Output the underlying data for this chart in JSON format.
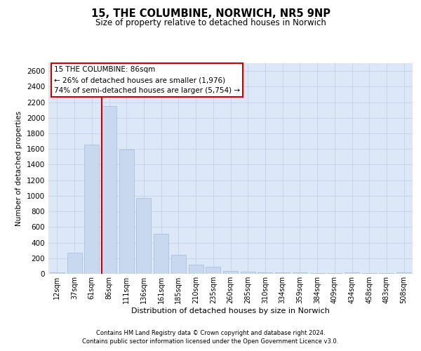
{
  "title": "15, THE COLUMBINE, NORWICH, NR5 9NP",
  "subtitle": "Size of property relative to detached houses in Norwich",
  "xlabel": "Distribution of detached houses by size in Norwich",
  "ylabel": "Number of detached properties",
  "categories": [
    "12sqm",
    "37sqm",
    "61sqm",
    "86sqm",
    "111sqm",
    "136sqm",
    "161sqm",
    "185sqm",
    "210sqm",
    "235sqm",
    "260sqm",
    "285sqm",
    "310sqm",
    "334sqm",
    "359sqm",
    "384sqm",
    "409sqm",
    "434sqm",
    "458sqm",
    "483sqm",
    "508sqm"
  ],
  "values": [
    20,
    270,
    1660,
    2150,
    1590,
    975,
    510,
    240,
    120,
    90,
    35,
    25,
    20,
    15,
    20,
    10,
    5,
    20,
    5,
    5,
    20
  ],
  "bar_color": "#c8d8ee",
  "bar_edge_color": "#a8bcd8",
  "highlight_index": 3,
  "highlight_color": "#cc0000",
  "ylim": [
    0,
    2700
  ],
  "yticks": [
    0,
    200,
    400,
    600,
    800,
    1000,
    1200,
    1400,
    1600,
    1800,
    2000,
    2200,
    2400,
    2600
  ],
  "annotation_line1": "15 THE COLUMBINE: 86sqm",
  "annotation_line2": "← 26% of detached houses are smaller (1,976)",
  "annotation_line3": "74% of semi-detached houses are larger (5,754) →",
  "annotation_box_facecolor": "#ffffff",
  "annotation_box_edgecolor": "#cc0000",
  "grid_color": "#c8d4e8",
  "bg_color": "#dce8f8",
  "footer1": "Contains HM Land Registry data © Crown copyright and database right 2024.",
  "footer2": "Contains public sector information licensed under the Open Government Licence v3.0."
}
